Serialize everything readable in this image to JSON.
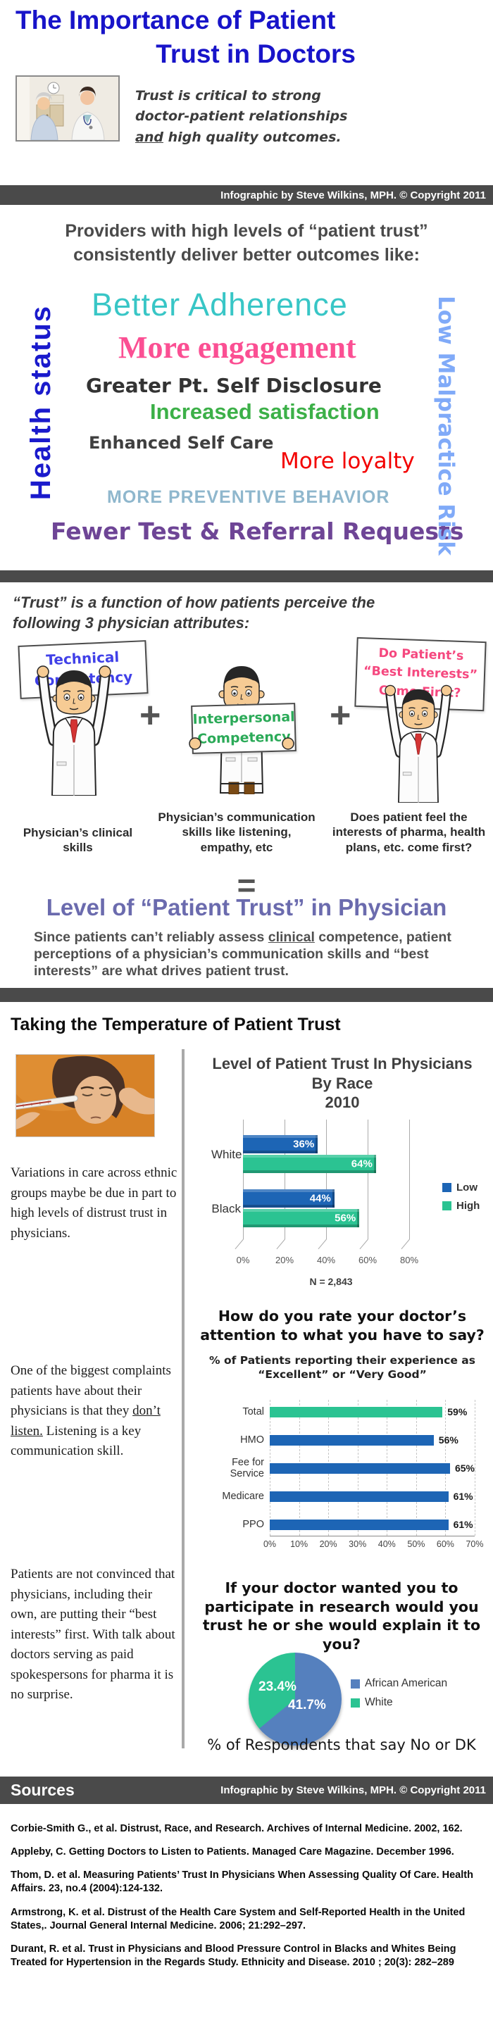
{
  "header": {
    "title_line1": "The Importance of Patient",
    "title_line2": "Trust in Doctors",
    "title_color": "#1814C9",
    "tagline_line1": "Trust is critical to strong",
    "tagline_line2": "doctor-patient relationships",
    "tagline_underlined": "and",
    "tagline_line3_rest": " high quality outcomes.",
    "credit": "Infographic by Steve Wilkins, MPH. © Copyright 2011"
  },
  "outcomes": {
    "intro_line1": "Providers with high levels of “patient trust”",
    "intro_line2": "consistently deliver better outcomes like:",
    "cloud": [
      {
        "label": "Health status",
        "color": "#1A1ACC"
      },
      {
        "label": "Better Adherence",
        "color": "#38C6C6"
      },
      {
        "label": "More engagement",
        "color": "#FB4F93"
      },
      {
        "label": "Greater Pt. Self Disclosure",
        "color": "#333333"
      },
      {
        "label": "Increased satisfaction",
        "color": "#3CB048"
      },
      {
        "label": "Enhanced Self Care",
        "color": "#3F3F3F"
      },
      {
        "label": "More loyalty",
        "color": "#F30000"
      },
      {
        "label": "MORE PREVENTIVE BEHAVIOR",
        "color": "#8FB7CD"
      },
      {
        "label": "Fewer Test & Referral Requests",
        "color": "#6E4596"
      },
      {
        "label": "Low Malpractice Risk",
        "color": "#80AAF8"
      }
    ]
  },
  "attributes": {
    "heading_line1": "“Trust” is a function of how patients perceive the",
    "heading_line2": "following 3 physician attributes:",
    "plus": "+",
    "equals": "=",
    "signs": [
      {
        "lines": [
          "Technical",
          "Competency"
        ],
        "color": "#4040E8"
      },
      {
        "lines": [
          "Interpersonal",
          "Competency"
        ],
        "color": "#2BAA58"
      },
      {
        "lines": [
          "Do Patient’s",
          "“Best Interests”",
          "Come First?"
        ],
        "color": "#F5487F"
      }
    ],
    "captions": [
      "Physician’s clinical skills",
      "Physician’s communication skills like listening, empathy, etc",
      "Does patient feel the interests of pharma, health plans, etc. come first?"
    ],
    "result_heading": "Level of “Patient Trust” in Physician",
    "result_text": {
      "l1_pre": "Since patients can’t reliably assess ",
      "l1_underline": "clinical",
      "l1_post": " competence, patient",
      "l2": "perceptions of a physician’s communication skills and “best",
      "l3": "interests” are what drives patient trust."
    }
  },
  "temperature": {
    "heading": "Taking the Temperature of Patient Trust",
    "para1": "Variations in care across ethnic groups maybe be due in part to high levels of distrust trust in physicians.",
    "para2_pre": "One of the biggest complaints patients have about their physicians is that they ",
    "para2_underline": "don’t listen.",
    "para2_post": " Listening is a key communication skill.",
    "para3": "Patients are not convinced that physicians, including their own, are putting their “best interests” first.  With talk about doctors serving as paid spokespersons for pharma it is no surprise."
  },
  "chart_data": [
    {
      "type": "bar",
      "orientation": "horizontal",
      "title": "Level of Patient Trust In Physicians By Race 2010",
      "title_lines": [
        "Level of Patient Trust In Physicians",
        "By Race",
        "2010"
      ],
      "categories": [
        "White",
        "Black"
      ],
      "series": [
        {
          "name": "Low",
          "color": "#1D65B5",
          "values": [
            36,
            44
          ],
          "labels": [
            "36%",
            "44%"
          ]
        },
        {
          "name": "High",
          "color": "#2BC392",
          "values": [
            64,
            56
          ],
          "labels": [
            "64%",
            "56%"
          ]
        }
      ],
      "xlim": [
        0,
        80
      ],
      "xticks": [
        "0%",
        "20%",
        "40%",
        "60%",
        "80%"
      ],
      "legend_position": "right",
      "note": "N = 2,843"
    },
    {
      "type": "bar",
      "orientation": "horizontal",
      "title": "How do you rate your doctor’s attention to what you have to say?",
      "subtitle": "% of Patients reporting their experience as “Excellent” or “Very Good”",
      "categories": [
        "Total",
        "HMO",
        "Fee for Service",
        "Medicare",
        "PPO"
      ],
      "values": [
        59,
        56,
        65,
        61,
        61
      ],
      "labels": [
        "59%",
        "56%",
        "65%",
        "61%",
        "61%"
      ],
      "colors": [
        "#2BC392",
        "#1D65B5",
        "#1D65B5",
        "#1D65B5",
        "#1D65B5"
      ],
      "xlim": [
        0,
        70
      ],
      "xticks": [
        "0%",
        "10%",
        "20%",
        "30%",
        "40%",
        "50%",
        "60%",
        "70%"
      ],
      "grid": "dashed"
    },
    {
      "type": "pie",
      "title": "If your doctor wanted you to participate in research would you trust he or she would explain it to you?",
      "slices": [
        {
          "label": "African American",
          "value": 41.7,
          "value_label": "41.7%",
          "color": "#5580BE"
        },
        {
          "label": "White",
          "value": 23.4,
          "value_label": "23.4%",
          "color": "#2BC392"
        }
      ],
      "legend_position": "right",
      "caption": "% of Respondents that say No or DK"
    }
  ],
  "sources": {
    "heading": "Sources",
    "credit": "Infographic by Steve Wilkins, MPH. © Copyright 2011",
    "items": [
      "Corbie-Smith G., et al.  Distrust, Race, and Research. Archives of Internal Medicine. 2002, 162.",
      "Appleby, C.  Getting Doctors to Listen to Patients. Managed Care Magazine. December 1996.",
      "Thom, D. et al. Measuring Patients’ Trust In Physicians When Assessing Quality Of Care. Health Affairs. 23, no.4 (2004):124-132.",
      "Armstrong, K. et al. Distrust of the Health Care System and Self-Reported Health in the United States,. Journal General Internal Medicine. 2006; 21:292–297.",
      "Durant, R. et al. Trust in Physicians and Blood Pressure Control in Blacks and Whites Being Treated for Hypertension in the Regards Study. Ethnicity and Disease. 2010 ; 20(3): 282–289"
    ]
  }
}
